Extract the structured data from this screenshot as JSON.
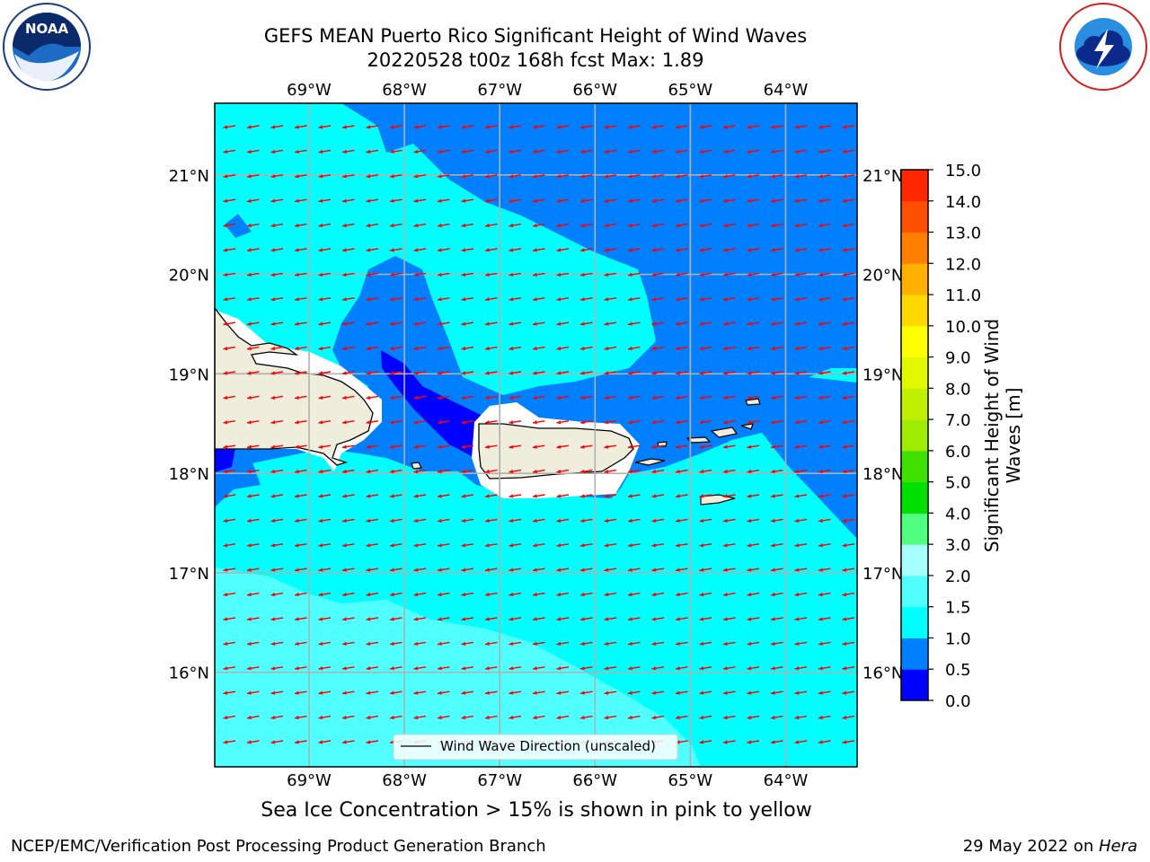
{
  "titles": {
    "line1": "GEFS MEAN Puerto Rico Significant Height of Wind Waves",
    "line2": "20220528 t00z 168h fcst   Max: 1.89"
  },
  "map": {
    "lon_range": [
      -69.99,
      -63.25
    ],
    "lat_range": [
      15.05,
      21.72
    ],
    "lon_ticks": [
      {
        "value": -69,
        "label": "69°W"
      },
      {
        "value": -68,
        "label": "68°W"
      },
      {
        "value": -67,
        "label": "67°W"
      },
      {
        "value": -66,
        "label": "66°W"
      },
      {
        "value": -65,
        "label": "65°W"
      },
      {
        "value": -64,
        "label": "64°W"
      }
    ],
    "lat_ticks": [
      {
        "value": 21,
        "label": "21°N"
      },
      {
        "value": 20,
        "label": "20°N"
      },
      {
        "value": 19,
        "label": "19°N"
      },
      {
        "value": 18,
        "label": "18°N"
      },
      {
        "value": 17,
        "label": "17°N"
      },
      {
        "value": 16,
        "label": "16°N"
      }
    ],
    "grid": true,
    "vector_color": "#ff0000",
    "land_color": "#efeedd",
    "legend_label": "Wind Wave Direction (unscaled)"
  },
  "colorbar": {
    "label": "Significant Height of Wind Waves [m]",
    "levels": [
      {
        "value": "0.0",
        "color": "#0000ff"
      },
      {
        "value": "0.5",
        "color": "#0080ff"
      },
      {
        "value": "1.0",
        "color": "#00ffff"
      },
      {
        "value": "1.5",
        "color": "#50ffff"
      },
      {
        "value": "2.0",
        "color": "#a8ffff"
      },
      {
        "value": "3.0",
        "color": "#50ff80"
      },
      {
        "value": "4.0",
        "color": "#00e000"
      },
      {
        "value": "5.0",
        "color": "#40e000"
      },
      {
        "value": "6.0",
        "color": "#a0ec00"
      },
      {
        "value": "7.0",
        "color": "#c0f000"
      },
      {
        "value": "8.0",
        "color": "#e0f800"
      },
      {
        "value": "9.0",
        "color": "#ffff00"
      },
      {
        "value": "10.0",
        "color": "#ffd800"
      },
      {
        "value": "11.0",
        "color": "#ffb000"
      },
      {
        "value": "12.0",
        "color": "#ff8000"
      },
      {
        "value": "13.0",
        "color": "#ff5000"
      },
      {
        "value": "14.0",
        "color": "#ff2800"
      },
      {
        "value": "15.0",
        "color": "#ff0000"
      }
    ]
  },
  "note": "Sea Ice Concentration > 15% is shown in pink to yellow",
  "footer": {
    "left": "NCEP/EMC/Verification Post Processing Product Generation Branch",
    "right_date": "29 May 2022 on ",
    "right_host": "Hera"
  }
}
